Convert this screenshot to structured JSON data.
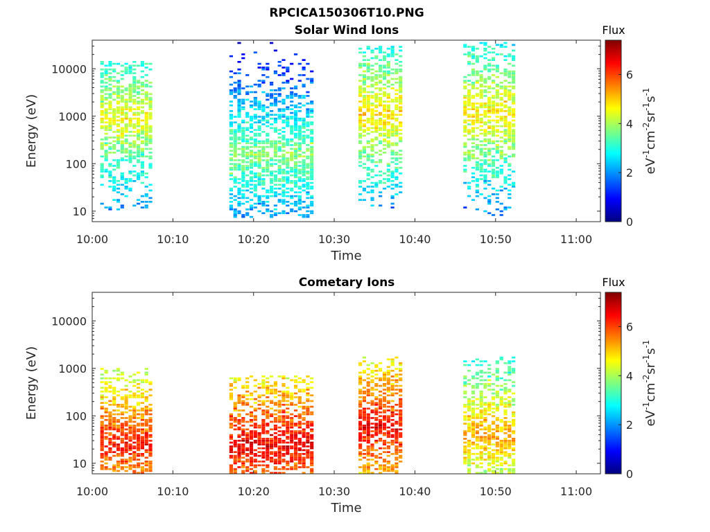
{
  "figure_title": "RPCICA150306T10.PNG",
  "colorbar_stops": [
    "#00007f",
    "#0000ff",
    "#007fff",
    "#00ffff",
    "#7fff7f",
    "#ffff00",
    "#ff7f00",
    "#ff0000",
    "#7f0000"
  ],
  "chart_data": [
    {
      "type": "heatmap",
      "title": "Solar Wind Ions",
      "xlabel": "Time",
      "ylabel": "Energy (eV)",
      "yscale": "log",
      "xlim": [
        "10:00",
        "11:03"
      ],
      "ylim": [
        6,
        40000
      ],
      "x_ticks": [
        "10:00",
        "10:10",
        "10:20",
        "10:30",
        "10:40",
        "10:50",
        "11:00"
      ],
      "y_ticks": [
        10,
        100,
        1000,
        10000
      ],
      "y_tick_labels": [
        "10",
        "100",
        "1000",
        "10000"
      ],
      "colorbar": {
        "title": "Flux",
        "label": "eV-1cm-2sr-1s-1",
        "range": [
          0,
          7.4
        ],
        "ticks": [
          0,
          2,
          4,
          6
        ]
      },
      "bursts": [
        {
          "start": "10:01",
          "end": "10:07",
          "min_energy": 10,
          "max_energy": 15000,
          "peak_energy": 900,
          "peak_flux": 4.6
        },
        {
          "start": "10:17",
          "end": "10:27",
          "min_energy": 7,
          "max_energy": 35000,
          "peak_energy": 150,
          "peak_flux": 3.8
        },
        {
          "start": "10:33",
          "end": "10:38",
          "min_energy": 8,
          "max_energy": 30000,
          "peak_energy": 1200,
          "peak_flux": 4.9
        },
        {
          "start": "10:46",
          "end": "10:52",
          "min_energy": 7,
          "max_energy": 35000,
          "peak_energy": 1200,
          "peak_flux": 4.8
        }
      ]
    },
    {
      "type": "heatmap",
      "title": "Cometary Ions",
      "xlabel": "Time",
      "ylabel": "Energy (eV)",
      "yscale": "log",
      "xlim": [
        "10:00",
        "11:03"
      ],
      "ylim": [
        6,
        40000
      ],
      "x_ticks": [
        "10:00",
        "10:10",
        "10:20",
        "10:30",
        "10:40",
        "10:50",
        "11:00"
      ],
      "y_ticks": [
        10,
        100,
        1000,
        10000
      ],
      "y_tick_labels": [
        "10",
        "100",
        "1000",
        "10000"
      ],
      "colorbar": {
        "title": "Flux",
        "label": "eV-1cm-2sr-1s-1",
        "range": [
          0,
          7.4
        ],
        "ticks": [
          0,
          2,
          4,
          6
        ]
      },
      "bursts": [
        {
          "start": "10:01",
          "end": "10:07",
          "min_energy": 6,
          "max_energy": 1000,
          "peak_energy": 25,
          "peak_flux": 6.3
        },
        {
          "start": "10:17",
          "end": "10:27",
          "min_energy": 6,
          "max_energy": 700,
          "peak_energy": 25,
          "peak_flux": 6.6
        },
        {
          "start": "10:33",
          "end": "10:38",
          "min_energy": 6,
          "max_energy": 1700,
          "peak_energy": 60,
          "peak_flux": 6.5
        },
        {
          "start": "10:46",
          "end": "10:52",
          "min_energy": 6,
          "max_energy": 1700,
          "peak_energy": 40,
          "peak_flux": 5.3
        }
      ]
    }
  ]
}
